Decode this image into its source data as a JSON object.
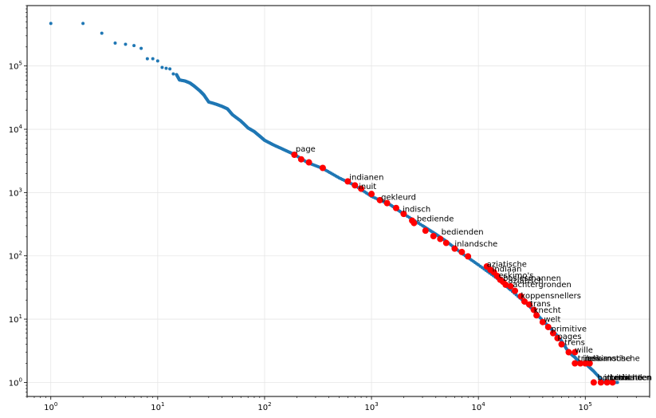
{
  "chart_data": {
    "type": "scatter",
    "title": "",
    "xlabel": "",
    "ylabel": "",
    "xscale": "log",
    "yscale": "log",
    "xlim": [
      0.6,
      400000
    ],
    "ylim": [
      0.6,
      900000
    ],
    "grid": true,
    "x_tick_labels": [
      {
        "value": 1,
        "base": "10",
        "exp": "0"
      },
      {
        "value": 10,
        "base": "10",
        "exp": "1"
      },
      {
        "value": 100,
        "base": "10",
        "exp": "2"
      },
      {
        "value": 1000,
        "base": "10",
        "exp": "3"
      },
      {
        "value": 10000,
        "base": "10",
        "exp": "4"
      },
      {
        "value": 100000,
        "base": "10",
        "exp": "5"
      }
    ],
    "y_tick_labels": [
      {
        "value": 1,
        "base": "10",
        "exp": "0"
      },
      {
        "value": 10,
        "base": "10",
        "exp": "1"
      },
      {
        "value": 100,
        "base": "10",
        "exp": "2"
      },
      {
        "value": 1000,
        "base": "10",
        "exp": "3"
      },
      {
        "value": 10000,
        "base": "10",
        "exp": "4"
      },
      {
        "value": 100000,
        "base": "10",
        "exp": "5"
      }
    ],
    "series": [
      {
        "role": "all-words",
        "color": "#1f77b4",
        "points": [
          [
            1,
            470000
          ],
          [
            2,
            470000
          ],
          [
            3,
            330000
          ],
          [
            4,
            230000
          ],
          [
            5,
            220000
          ],
          [
            6,
            210000
          ],
          [
            7,
            190000
          ],
          [
            8,
            130000
          ],
          [
            9,
            130000
          ],
          [
            10,
            120000
          ],
          [
            11,
            95000
          ],
          [
            12,
            92000
          ],
          [
            13,
            90000
          ],
          [
            14,
            75000
          ],
          [
            15,
            73000
          ],
          [
            16,
            60000
          ],
          [
            18,
            58000
          ],
          [
            20,
            54000
          ],
          [
            22,
            48000
          ],
          [
            25,
            40000
          ],
          [
            27,
            35000
          ],
          [
            30,
            27000
          ],
          [
            35,
            25000
          ],
          [
            40,
            23000
          ],
          [
            45,
            21000
          ],
          [
            50,
            17000
          ],
          [
            60,
            13500
          ],
          [
            70,
            10500
          ],
          [
            80,
            9200
          ],
          [
            90,
            7800
          ],
          [
            100,
            6700
          ],
          [
            120,
            5700
          ],
          [
            150,
            4800
          ],
          [
            190,
            4000
          ],
          [
            250,
            3000
          ],
          [
            350,
            2400
          ],
          [
            500,
            1700
          ],
          [
            700,
            1300
          ],
          [
            1000,
            870
          ],
          [
            1500,
            640
          ],
          [
            2000,
            460
          ],
          [
            3000,
            300
          ],
          [
            4000,
            220
          ],
          [
            5000,
            170
          ],
          [
            7000,
            110
          ],
          [
            10000,
            72
          ],
          [
            15000,
            44
          ],
          [
            20000,
            29
          ],
          [
            30000,
            16
          ],
          [
            40000,
            9.5
          ],
          [
            50000,
            6.5
          ],
          [
            60000,
            4.5
          ],
          [
            70000,
            3
          ],
          [
            80000,
            2.5
          ],
          [
            90000,
            2
          ],
          [
            100000,
            2
          ],
          [
            120000,
            1.5
          ],
          [
            150000,
            1
          ],
          [
            200000,
            1
          ]
        ]
      },
      {
        "role": "highlighted-words",
        "color": "#ff0000",
        "points": [
          [
            190,
            3950
          ],
          [
            220,
            3350
          ],
          [
            260,
            3000
          ],
          [
            350,
            2450
          ],
          [
            600,
            1500
          ],
          [
            700,
            1300
          ],
          [
            800,
            1150
          ],
          [
            1000,
            950
          ],
          [
            1200,
            760
          ],
          [
            1400,
            680
          ],
          [
            1700,
            570
          ],
          [
            2000,
            460
          ],
          [
            2400,
            360
          ],
          [
            2500,
            330
          ],
          [
            3200,
            250
          ],
          [
            3800,
            205
          ],
          [
            4400,
            185
          ],
          [
            5000,
            160
          ],
          [
            6000,
            130
          ],
          [
            7000,
            115
          ],
          [
            8000,
            98
          ],
          [
            12000,
            68
          ],
          [
            13000,
            60
          ],
          [
            14000,
            55
          ],
          [
            15000,
            48
          ],
          [
            16000,
            42
          ],
          [
            17000,
            39
          ],
          [
            18000,
            35
          ],
          [
            20000,
            33
          ],
          [
            22000,
            28
          ],
          [
            25000,
            23
          ],
          [
            27000,
            19
          ],
          [
            30000,
            17
          ],
          [
            33000,
            14
          ],
          [
            35000,
            11.5
          ],
          [
            40000,
            9
          ],
          [
            45000,
            7.5
          ],
          [
            50000,
            6
          ],
          [
            55000,
            5
          ],
          [
            60000,
            4
          ],
          [
            70000,
            3
          ],
          [
            80000,
            3
          ],
          [
            80000,
            2
          ],
          [
            90000,
            2
          ],
          [
            100000,
            2
          ],
          [
            110000,
            2
          ],
          [
            120000,
            1
          ],
          [
            140000,
            1
          ],
          [
            160000,
            1
          ],
          [
            180000,
            1
          ]
        ]
      }
    ],
    "labels": [
      {
        "text": "page",
        "x": 195,
        "y": 4200
      },
      {
        "text": "indianen",
        "x": 620,
        "y": 1500
      },
      {
        "text": "inuit",
        "x": 760,
        "y": 1070
      },
      {
        "text": "gekleurd",
        "x": 1230,
        "y": 720
      },
      {
        "text": "indisch",
        "x": 1950,
        "y": 470
      },
      {
        "text": "bediende",
        "x": 2650,
        "y": 330
      },
      {
        "text": "bedienden",
        "x": 4500,
        "y": 205
      },
      {
        "text": "inlandsche",
        "x": 6000,
        "y": 133
      },
      {
        "text": "aziatische",
        "x": 12000,
        "y": 63
      },
      {
        "text": "indiaan",
        "x": 13500,
        "y": 53
      },
      {
        "text": "eskimo's",
        "x": 15500,
        "y": 42
      },
      {
        "text": "bosjesmannen",
        "x": 17000,
        "y": 38
      },
      {
        "text": "aziatisch",
        "x": 19000,
        "y": 35
      },
      {
        "text": "achtergronden",
        "x": 21000,
        "y": 30
      },
      {
        "text": "koppensnellers",
        "x": 25000,
        "y": 20
      },
      {
        "text": "trans",
        "x": 30500,
        "y": 15
      },
      {
        "text": "knecht",
        "x": 33000,
        "y": 12
      },
      {
        "text": "welt",
        "x": 41000,
        "y": 8.5
      },
      {
        "text": "primitive",
        "x": 48000,
        "y": 6
      },
      {
        "text": "pages",
        "x": 55000,
        "y": 4.6
      },
      {
        "text": "trens",
        "x": 64000,
        "y": 3.7
      },
      {
        "text": "wille",
        "x": 80000,
        "y": 2.8
      },
      {
        "text": "tribes",
        "x": 85000,
        "y": 2.05
      },
      {
        "text": "indiaansche",
        "x": 95000,
        "y": 2.05
      },
      {
        "text": "eskimotische",
        "x": 105000,
        "y": 2.05
      },
      {
        "text": "bottoms",
        "x": 130000,
        "y": 1.03
      },
      {
        "text": "inuitische",
        "x": 150000,
        "y": 1.03
      },
      {
        "text": "bedienden",
        "x": 170000,
        "y": 1.03
      },
      {
        "text": "mulatten",
        "x": 190000,
        "y": 1.03
      }
    ]
  }
}
